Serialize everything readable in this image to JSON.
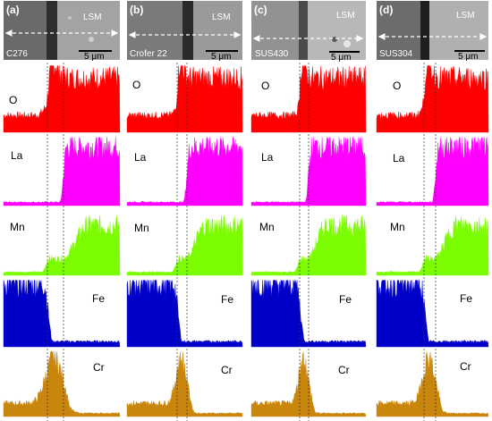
{
  "panels": [
    {
      "letter": "(a)",
      "sample": "C276",
      "region": "LSM",
      "scale": "5 μm"
    },
    {
      "letter": "(b)",
      "sample": "Crofer 22",
      "region": "LSM",
      "scale": "5 μm"
    },
    {
      "letter": "(c)",
      "sample": "SUS430",
      "region": "LSM",
      "scale": "5 μm"
    },
    {
      "letter": "(d)",
      "sample": "SUS304",
      "region": "LSM",
      "scale": "5 μm"
    }
  ],
  "elements": [
    {
      "symbol": "O",
      "color": "#ff0000"
    },
    {
      "symbol": "La",
      "color": "#ff00ff"
    },
    {
      "symbol": "Mn",
      "color": "#7cfc00"
    },
    {
      "symbol": "Fe",
      "color": "#0000c8"
    },
    {
      "symbol": "Cr",
      "color": "#c8860c"
    }
  ]
}
